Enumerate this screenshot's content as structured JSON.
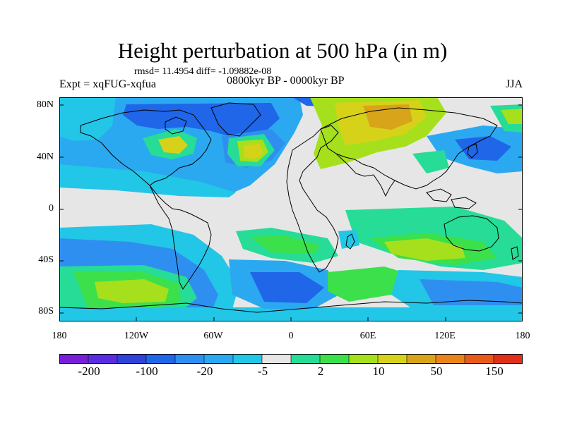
{
  "title": "Height perturbation at 500 hPa (in m)",
  "stats": "rmsd= 11.4954 diff= -1.09882e-08",
  "experiment": "Expt = xqFUG-xqfua",
  "period": "0800kyr BP - 0000kyr BP",
  "season": "JJA",
  "axes": {
    "y_ticks": [
      "80N",
      "40N",
      "0",
      "40S",
      "80S"
    ],
    "x_ticks": [
      "180",
      "120W",
      "60W",
      "0",
      "60E",
      "120E",
      "180"
    ]
  },
  "colorbar": {
    "colors": [
      "#7a1fd8",
      "#5a2ee0",
      "#2f43d8",
      "#1f66e8",
      "#2f8ff0",
      "#2aa9f0",
      "#22c6e6",
      "#e6e6e6",
      "#26dc96",
      "#3ce04a",
      "#a6e01c",
      "#d6d21a",
      "#d8a41a",
      "#e8841a",
      "#e85a1a",
      "#e0301a"
    ],
    "labels": [
      "-200",
      "-100",
      "-20",
      "-5",
      "2",
      "10",
      "50",
      "150"
    ]
  },
  "map_palette": {
    "neutral": "#e6e6e6",
    "light_blue": "#22c6e6",
    "blue": "#2aa9f0",
    "mid_blue": "#2f8ff0",
    "deep_blue": "#1f66e8",
    "teal_green": "#26dc96",
    "green": "#3ce04a",
    "yellow_green": "#a6e01c",
    "yellow": "#d6d21a",
    "orange": "#d8a41a",
    "dark_orange": "#e8841a"
  }
}
